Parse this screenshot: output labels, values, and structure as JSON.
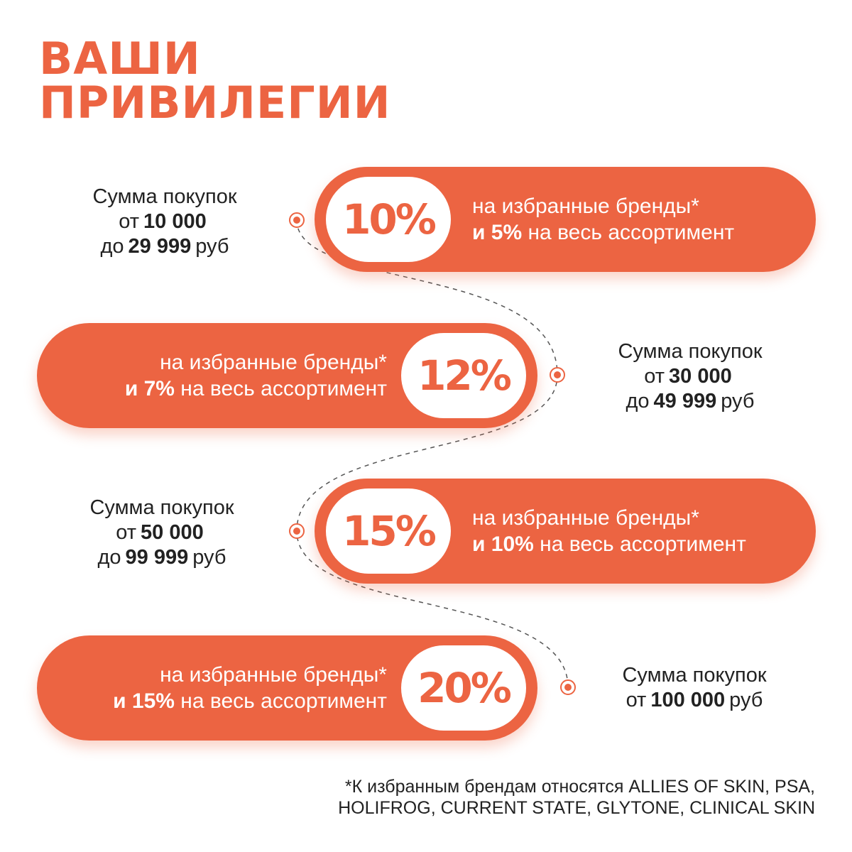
{
  "title": {
    "line1": "ВАШИ",
    "line2": "ПРИВИЛЕГИИ"
  },
  "colors": {
    "accent": "#EC6442",
    "text": "#222222",
    "badge_bg": "#FFFFFF",
    "background": "#FFFFFF"
  },
  "tiers": [
    {
      "percent": "10%",
      "bonus_line1": "на избранные бренды*",
      "bonus_line2_strong": "и 5%",
      "bonus_line2_rest": " на весь ассортимент",
      "amount_line1": "Сумма покупок",
      "amount_from_label": "от",
      "amount_from": "10 000",
      "amount_to_label": "до",
      "amount_to": "29 999",
      "amount_unit": "руб"
    },
    {
      "percent": "12%",
      "bonus_line1": "на избранные бренды*",
      "bonus_line2_strong": "и 7%",
      "bonus_line2_rest": " на весь ассортимент",
      "amount_line1": "Сумма покупок",
      "amount_from_label": "от",
      "amount_from": "30 000",
      "amount_to_label": "до",
      "amount_to": "49 999",
      "amount_unit": "руб"
    },
    {
      "percent": "15%",
      "bonus_line1": "на избранные бренды*",
      "bonus_line2_strong": "и 10%",
      "bonus_line2_rest": " на весь ассортимент",
      "amount_line1": "Сумма покупок",
      "amount_from_label": "от",
      "amount_from": "50 000",
      "amount_to_label": "до",
      "amount_to": "99 999",
      "amount_unit": "руб"
    },
    {
      "percent": "20%",
      "bonus_line1": "на избранные бренды*",
      "bonus_line2_strong": "и 15%",
      "bonus_line2_rest": " на весь ассортимент",
      "amount_line1": "Сумма покупок",
      "amount_from_label": "от",
      "amount_from": "100 000",
      "amount_unit": "руб"
    }
  ],
  "footnote": {
    "line1": "*К избранным брендам относятся ALLIES OF SKIN, PSA,",
    "line2": "HOLIFROG, CURRENT STATE, GLYTONE, CLINICAL SKIN"
  }
}
